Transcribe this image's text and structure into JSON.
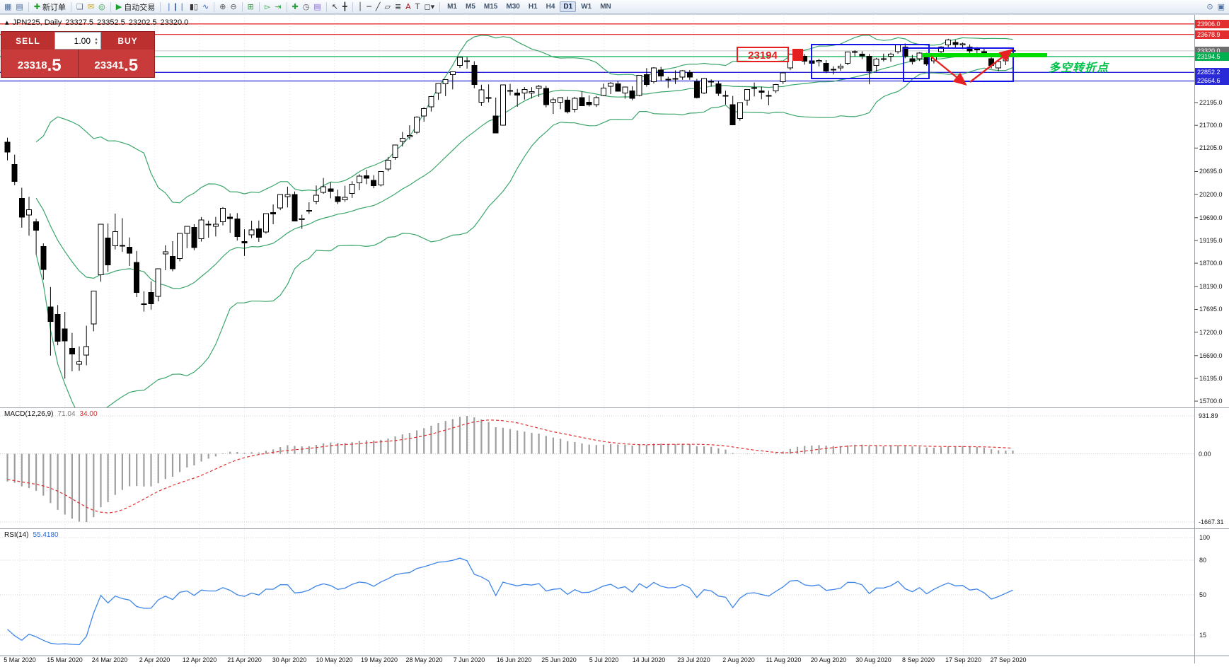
{
  "toolbar": {
    "groups": [
      {
        "items": [
          {
            "name": "new-chart-icon",
            "glyph": "▦",
            "color": "#4a6fa5"
          },
          {
            "name": "profiles-icon",
            "glyph": "▤",
            "color": "#4a6fa5"
          }
        ]
      },
      {
        "items": [
          {
            "name": "new-order-button",
            "glyph": "✚",
            "color": "#1f9e2c",
            "label": "新订单"
          }
        ]
      },
      {
        "items": [
          {
            "name": "metaeditor-icon",
            "glyph": "❏",
            "color": "#6a7686"
          },
          {
            "name": "alerts-icon",
            "glyph": "✉",
            "color": "#c8a21f"
          },
          {
            "name": "market-icon",
            "glyph": "◎",
            "color": "#2f9e41"
          }
        ]
      },
      {
        "items": [
          {
            "name": "autotrading-button",
            "glyph": "▶",
            "color": "#18a32a",
            "label": "自动交易"
          }
        ]
      },
      {
        "items": [
          {
            "name": "bar-chart-icon",
            "glyph": "❘❙❘",
            "color": "#3e68b8"
          },
          {
            "name": "candlestick-icon",
            "glyph": "▮▯",
            "color": "#333333"
          },
          {
            "name": "line-chart-icon",
            "glyph": "∿",
            "color": "#3e68b8"
          }
        ]
      },
      {
        "items": [
          {
            "name": "zoom-in-icon",
            "glyph": "⊕",
            "color": "#555555"
          },
          {
            "name": "zoom-out-icon",
            "glyph": "⊖",
            "color": "#555555"
          }
        ]
      },
      {
        "items": [
          {
            "name": "tile-windows-icon",
            "glyph": "⊞",
            "color": "#2f9e41"
          }
        ]
      },
      {
        "items": [
          {
            "name": "auto-scroll-icon",
            "glyph": "▻",
            "color": "#2f9e41"
          },
          {
            "name": "chart-shift-icon",
            "glyph": "⇥",
            "color": "#2f9e41"
          }
        ]
      },
      {
        "items": [
          {
            "name": "indicators-icon",
            "glyph": "✚",
            "color": "#2f9e41"
          },
          {
            "name": "periods-icon",
            "glyph": "◷",
            "color": "#555555"
          },
          {
            "name": "templates-icon",
            "glyph": "▤",
            "color": "#8a6ad0"
          }
        ]
      },
      {
        "items": [
          {
            "name": "cursor-icon",
            "glyph": "↖",
            "color": "#333333"
          },
          {
            "name": "crosshair-icon",
            "glyph": "╋",
            "color": "#333333"
          }
        ]
      },
      {
        "items": [
          {
            "name": "vertical-line-icon",
            "glyph": "│",
            "color": "#333333"
          },
          {
            "name": "horizontal-line-icon",
            "glyph": "─",
            "color": "#333333"
          },
          {
            "name": "trendline-icon",
            "glyph": "╱",
            "color": "#333333"
          },
          {
            "name": "channel-icon",
            "glyph": "▱",
            "color": "#333333"
          },
          {
            "name": "fibonacci-icon",
            "glyph": "≣",
            "color": "#333333"
          },
          {
            "name": "text-icon",
            "glyph": "A",
            "color": "#b02020"
          },
          {
            "name": "label-icon",
            "glyph": "T",
            "color": "#333333"
          },
          {
            "name": "shapes-icon",
            "glyph": "◻▾",
            "color": "#333333"
          }
        ]
      }
    ],
    "timeframes": [
      "M1",
      "M5",
      "M15",
      "M30",
      "H1",
      "H4",
      "D1",
      "W1",
      "MN"
    ],
    "active_timeframe": "D1",
    "right_items": [
      {
        "name": "search-icon",
        "glyph": "⊙",
        "color": "#4a6fa5"
      },
      {
        "name": "window-icon",
        "glyph": "▣",
        "color": "#4a6fa5"
      }
    ]
  },
  "chart_header": {
    "marker": "▴",
    "symbol": "JPN225, Daily",
    "open": "23327.5",
    "high": "23352.5",
    "low": "23202.5",
    "close": "23320.0"
  },
  "trade_panel": {
    "sell_label": "SELL",
    "buy_label": "BUY",
    "volume": "1.00",
    "spinner_up": "▴",
    "spinner_down": "▾",
    "sell_price_main": "23318",
    "sell_price_pip": ".5",
    "buy_price_main": "23341",
    "buy_price_pip": ".5"
  },
  "price_axis": {
    "badges": [
      {
        "label": "23906.0",
        "price": 23906.0,
        "bg": "#e22e2e",
        "line": "#e22e2e"
      },
      {
        "label": "23678.9",
        "price": 23678.9,
        "bg": "#e22e2e",
        "line": "#e22e2e"
      },
      {
        "label": "23320.0",
        "price": 23320.0,
        "bg": "#6e6e6e",
        "line": "#c8c8c8"
      },
      {
        "label": "23194.5",
        "price": 23194.5,
        "bg": "#00b050",
        "line": "#00b050"
      },
      {
        "label": "22852.2",
        "price": 22852.2,
        "bg": "#2929d8",
        "line": "#2929d8"
      },
      {
        "label": "22664.6",
        "price": 22664.6,
        "bg": "#2929d8",
        "line": "#2929d8"
      }
    ],
    "ticks": [
      "22195.0",
      "21700.0",
      "21205.0",
      "20695.0",
      "20200.0",
      "19690.0",
      "19195.0",
      "18700.0",
      "18190.0",
      "17695.0",
      "17200.0",
      "16690.0",
      "16195.0",
      "15700.0"
    ]
  },
  "macd_panel": {
    "title": "MACD(12,26,9)",
    "main_value": "71.04",
    "signal_value": "34.00",
    "scale_max": "931.89",
    "scale_zero": "0.00",
    "scale_min": "-1667.31"
  },
  "rsi_panel": {
    "title": "RSI(14)",
    "value": "55.4180",
    "levels": [
      "100",
      "80",
      "50",
      "15"
    ]
  },
  "date_axis": {
    "labels": [
      "5 Mar 2020",
      "15 Mar 2020",
      "24 Mar 2020",
      "2 Apr 2020",
      "12 Apr 2020",
      "21 Apr 2020",
      "30 Apr 2020",
      "10 May 2020",
      "19 May 2020",
      "28 May 2020",
      "7 Jun 2020",
      "16 Jun 2020",
      "25 Jun 2020",
      "5 Jul 2020",
      "14 Jul 2020",
      "23 Jul 2020",
      "2 Aug 2020",
      "11 Aug 2020",
      "20 Aug 2020",
      "30 Aug 2020",
      "8 Sep 2020",
      "17 Sep 2020",
      "27 Sep 2020"
    ]
  },
  "annotations": {
    "price_callout": "23194",
    "turning_point_label": "多空转折点"
  },
  "chart_data": {
    "type": "candlestick",
    "symbol": "JPN225",
    "timeframe": "Daily",
    "x_range": [
      "5 Mar 2020",
      "27 Sep 2020"
    ],
    "y_range": [
      15700,
      23906
    ],
    "overlays": [
      {
        "name": "Bollinger Bands",
        "period": 20,
        "deviation": 2,
        "color": "#3aa56b"
      }
    ],
    "horizontal_lines": [
      23906.0,
      23678.9,
      23194.5,
      22852.2,
      22664.6
    ],
    "indicators": [
      {
        "name": "MACD",
        "params": [
          12,
          26,
          9
        ],
        "values": [
          71.04,
          34.0
        ],
        "scale": [
          931.89,
          0.0,
          -1667.31
        ]
      },
      {
        "name": "RSI",
        "params": [
          14
        ],
        "value": 55.418,
        "scale": [
          100,
          80,
          50,
          15
        ]
      }
    ],
    "candles": [
      [
        21330,
        21430,
        20940,
        21120
      ],
      [
        20850,
        21061,
        20400,
        20480
      ],
      [
        20110,
        20343,
        19473,
        19699
      ],
      [
        19750,
        20144,
        19300,
        19867
      ],
      [
        19600,
        19667,
        18892,
        19416
      ],
      [
        19064,
        19132,
        18340,
        18560
      ],
      [
        17750,
        18184,
        16690,
        17431
      ],
      [
        17586,
        17790,
        16914,
        17002
      ],
      [
        17270,
        17641,
        16190,
        17011
      ],
      [
        16850,
        17184,
        16350,
        16727
      ],
      [
        16500,
        16890,
        16358,
        16553
      ],
      [
        16700,
        17340,
        16480,
        16888
      ],
      [
        17380,
        18092,
        17219,
        18092
      ],
      [
        18446,
        19550,
        18300,
        19547
      ],
      [
        19250,
        19564,
        18512,
        18665
      ],
      [
        19080,
        19780,
        18999,
        19389
      ],
      [
        19083,
        19680,
        18946,
        19085
      ],
      [
        19050,
        19260,
        18641,
        18917
      ],
      [
        18714,
        18967,
        17964,
        18065
      ],
      [
        17800,
        18091,
        17646,
        17818
      ],
      [
        18060,
        18306,
        17690,
        17820
      ],
      [
        17980,
        18576,
        17871,
        18576
      ],
      [
        18900,
        19091,
        18549,
        18950
      ],
      [
        18850,
        19179,
        18525,
        18579
      ],
      [
        18800,
        19350,
        18740,
        19346
      ],
      [
        19350,
        19500,
        19029,
        19499
      ],
      [
        19480,
        19549,
        18983,
        19043
      ],
      [
        19232,
        19705,
        19172,
        19639
      ],
      [
        19550,
        19627,
        19254,
        19551
      ],
      [
        19500,
        19707,
        19282,
        19551
      ],
      [
        19600,
        19922,
        19524,
        19897
      ],
      [
        19700,
        19784,
        19360,
        19669
      ],
      [
        19660,
        19790,
        19193,
        19281
      ],
      [
        19170,
        19439,
        18858,
        19138
      ],
      [
        19320,
        19626,
        19248,
        19429
      ],
      [
        19450,
        19630,
        19163,
        19262
      ],
      [
        19380,
        19783,
        19344,
        19783
      ],
      [
        19800,
        19980,
        19548,
        19771
      ],
      [
        19900,
        20180,
        19857,
        20194
      ],
      [
        20150,
        20366,
        19914,
        20194
      ],
      [
        20193,
        20260,
        19611,
        19619
      ],
      [
        19650,
        19755,
        19448,
        19674
      ],
      [
        19850,
        20025,
        19775,
        19849
      ],
      [
        20050,
        20390,
        19985,
        20179
      ],
      [
        20240,
        20555,
        20210,
        20366
      ],
      [
        20320,
        20459,
        20111,
        20267
      ],
      [
        20150,
        20300,
        19989,
        20037
      ],
      [
        20080,
        20385,
        20040,
        20133
      ],
      [
        20220,
        20482,
        20120,
        20414
      ],
      [
        20450,
        20634,
        20290,
        20595
      ],
      [
        20600,
        20734,
        20420,
        20552
      ],
      [
        20500,
        20617,
        20332,
        20388
      ],
      [
        20400,
        20691,
        20370,
        20691
      ],
      [
        20750,
        21012,
        20700,
        20940
      ],
      [
        21000,
        21281,
        20950,
        21271
      ],
      [
        21350,
        21556,
        21240,
        21419
      ],
      [
        21450,
        21701,
        21390,
        21478
      ],
      [
        21550,
        21897,
        21510,
        21878
      ],
      [
        21900,
        22092,
        21780,
        22062
      ],
      [
        22100,
        22340,
        22000,
        22326
      ],
      [
        22400,
        22614,
        22255,
        22614
      ],
      [
        22600,
        22700,
        22335,
        22696
      ],
      [
        22800,
        22870,
        22482,
        22864
      ],
      [
        23000,
        23178,
        22948,
        23178
      ],
      [
        23100,
        23185,
        22933,
        23091
      ],
      [
        23000,
        23093,
        22508,
        22588
      ],
      [
        22200,
        22585,
        22121,
        22473
      ],
      [
        22300,
        22590,
        22200,
        22305
      ],
      [
        21900,
        22303,
        21530,
        21531
      ],
      [
        21700,
        22582,
        21693,
        22582
      ],
      [
        22450,
        22601,
        22351,
        22456
      ],
      [
        22400,
        22490,
        22104,
        22355
      ],
      [
        22400,
        22532,
        22259,
        22479
      ],
      [
        22400,
        22530,
        22285,
        22437
      ],
      [
        22500,
        22580,
        22320,
        22549
      ],
      [
        22500,
        22560,
        22091,
        22150
      ],
      [
        22200,
        22304,
        21948,
        22260
      ],
      [
        22200,
        22307,
        22051,
        22306
      ],
      [
        22250,
        22325,
        21958,
        21995
      ],
      [
        22050,
        22320,
        21980,
        22288
      ],
      [
        22300,
        22435,
        22122,
        22122
      ],
      [
        22200,
        22350,
        22110,
        22146
      ],
      [
        22150,
        22340,
        22100,
        22306
      ],
      [
        22350,
        22608,
        22335,
        22514
      ],
      [
        22550,
        22640,
        22380,
        22615
      ],
      [
        22600,
        22670,
        22435,
        22439
      ],
      [
        22400,
        22530,
        22280,
        22530
      ],
      [
        22450,
        22550,
        22245,
        22291
      ],
      [
        22350,
        22795,
        22330,
        22785
      ],
      [
        22800,
        22945,
        22540,
        22590
      ],
      [
        22650,
        22965,
        22610,
        22946
      ],
      [
        22900,
        22970,
        22655,
        22770
      ],
      [
        22700,
        22755,
        22512,
        22696
      ],
      [
        22700,
        22895,
        22600,
        22717
      ],
      [
        22750,
        22900,
        22690,
        22884
      ],
      [
        22850,
        22902,
        22690,
        22752
      ],
      [
        22650,
        22711,
        22285,
        22303
      ],
      [
        22400,
        22730,
        22380,
        22715
      ],
      [
        22650,
        22698,
        22540,
        22657
      ],
      [
        22600,
        22662,
        22340,
        22397
      ],
      [
        22350,
        22454,
        22150,
        22339
      ],
      [
        22150,
        22340,
        21710,
        21710
      ],
      [
        21850,
        22200,
        21800,
        22196
      ],
      [
        22250,
        22477,
        22130,
        22477
      ],
      [
        22500,
        22630,
        22327,
        22515
      ],
      [
        22450,
        22540,
        22268,
        22418
      ],
      [
        22350,
        22454,
        22135,
        22330
      ],
      [
        22450,
        22600,
        22400,
        22587
      ],
      [
        22650,
        22850,
        22600,
        22844
      ],
      [
        22950,
        23260,
        22900,
        23249
      ],
      [
        23290,
        23338,
        23176,
        23289
      ],
      [
        23200,
        23251,
        23020,
        23096
      ],
      [
        23100,
        23145,
        22948,
        23051
      ],
      [
        23080,
        23149,
        22985,
        23111
      ],
      [
        23050,
        23120,
        22835,
        22880
      ],
      [
        22900,
        22985,
        22808,
        22920
      ],
      [
        22950,
        23040,
        22885,
        22985
      ],
      [
        23050,
        23301,
        23010,
        23296
      ],
      [
        23300,
        23334,
        23198,
        23290
      ],
      [
        23250,
        23311,
        23140,
        23208
      ],
      [
        23200,
        23254,
        22594,
        22882
      ],
      [
        23000,
        23168,
        22869,
        23139
      ],
      [
        23150,
        23260,
        23090,
        23138
      ],
      [
        23200,
        23280,
        23085,
        23247
      ],
      [
        23300,
        23470,
        23260,
        23465
      ],
      [
        23400,
        23480,
        23160,
        23205
      ],
      [
        23150,
        23230,
        23025,
        23089
      ],
      [
        23150,
        23290,
        23100,
        23274
      ],
      [
        23200,
        23280,
        22995,
        23032
      ],
      [
        23100,
        23250,
        23045,
        23235
      ],
      [
        23300,
        23420,
        23250,
        23406
      ],
      [
        23450,
        23582,
        23400,
        23559
      ],
      [
        23500,
        23560,
        23375,
        23454
      ],
      [
        23450,
        23500,
        23360,
        23475
      ],
      [
        23400,
        23460,
        23250,
        23319
      ],
      [
        23350,
        23400,
        23245,
        23360
      ],
      [
        23300,
        23365,
        23195,
        23235
      ],
      [
        23150,
        23240,
        22935,
        23000
      ],
      [
        22950,
        23105,
        22880,
        23087
      ],
      [
        23100,
        23204,
        23010,
        23204
      ],
      [
        23327.5,
        23352.5,
        23202.5,
        23320.0
      ]
    ]
  }
}
